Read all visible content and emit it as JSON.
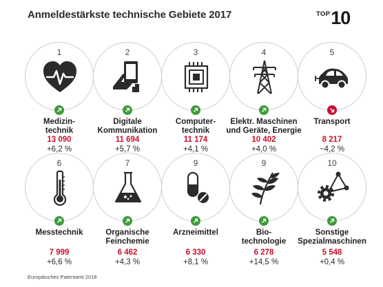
{
  "title": "Anmeldestärkste technische Gebiete 2017",
  "badge": {
    "word": "TOP",
    "number": "10"
  },
  "colors": {
    "count": "#c8102e",
    "up": "#3e9b3a",
    "down": "#c8102e",
    "circle": "#cfcfcf"
  },
  "tiles": [
    {
      "rank": "1",
      "icon": "heart-pulse-icon",
      "trend": "up",
      "label": [
        "Medizin-",
        "technik"
      ],
      "count": "13 090",
      "change": "+6,2 %"
    },
    {
      "rank": "2",
      "icon": "tablet-hand-icon",
      "trend": "up",
      "label": [
        "Digitale",
        "Kommunikation"
      ],
      "count": "11 694",
      "change": "+5,7 %"
    },
    {
      "rank": "3",
      "icon": "microchip-icon",
      "trend": "up",
      "label": [
        "Computer-",
        "technik"
      ],
      "count": "11 174",
      "change": "+4,1 %"
    },
    {
      "rank": "4",
      "icon": "power-pylon-icon",
      "trend": "up",
      "label": [
        "Elektr. Maschinen",
        "und Geräte, Energie"
      ],
      "count": "10 402",
      "change": "+4,0 %"
    },
    {
      "rank": "5",
      "icon": "electric-car-icon",
      "trend": "down",
      "label": [
        "Transport"
      ],
      "count": "8 217",
      "change": "−4,2 %"
    },
    {
      "rank": "6",
      "icon": "thermometer-icon",
      "trend": "up",
      "label": [
        "Messtechnik"
      ],
      "count": "7 999",
      "change": "+6,6 %"
    },
    {
      "rank": "7",
      "icon": "flask-icon",
      "trend": "up",
      "label": [
        "Organische",
        "Feinchemie"
      ],
      "count": "6 462",
      "change": "+4,3 %"
    },
    {
      "rank": "9",
      "icon": "pills-icon",
      "trend": "up",
      "label": [
        "Arzneimittel"
      ],
      "count": "6 330",
      "change": "+8,1 %"
    },
    {
      "rank": "9",
      "icon": "plant-icon",
      "trend": "up",
      "label": [
        "Bio-",
        "technologie"
      ],
      "count": "6 278",
      "change": "+14,5 %"
    },
    {
      "rank": "10",
      "icon": "gear-network-icon",
      "trend": "up",
      "label": [
        "Sonstige",
        "Spezialmaschinen"
      ],
      "count": "5 548",
      "change": "+0,4 %"
    }
  ],
  "footer": "Europäisches Patentamt 2018"
}
